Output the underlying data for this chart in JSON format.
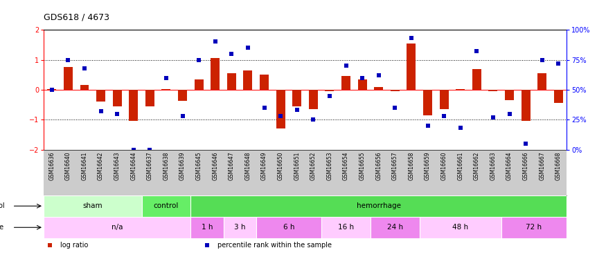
{
  "title": "GDS618 / 4673",
  "samples": [
    "GSM16636",
    "GSM16640",
    "GSM16641",
    "GSM16642",
    "GSM16643",
    "GSM16644",
    "GSM16637",
    "GSM16638",
    "GSM16639",
    "GSM16645",
    "GSM16646",
    "GSM16647",
    "GSM16648",
    "GSM16649",
    "GSM16650",
    "GSM16651",
    "GSM16652",
    "GSM16653",
    "GSM16654",
    "GSM16655",
    "GSM16656",
    "GSM16657",
    "GSM16658",
    "GSM16659",
    "GSM16660",
    "GSM16661",
    "GSM16662",
    "GSM16663",
    "GSM16664",
    "GSM16666",
    "GSM16667",
    "GSM16668"
  ],
  "log_ratio": [
    0.02,
    0.75,
    0.15,
    -0.4,
    -0.55,
    -1.05,
    -0.55,
    0.02,
    -0.38,
    0.35,
    1.05,
    0.55,
    0.65,
    0.5,
    -1.3,
    -0.55,
    -0.65,
    -0.05,
    0.45,
    0.35,
    0.08,
    -0.05,
    1.55,
    -0.85,
    -0.65,
    0.02,
    0.7,
    -0.05,
    -0.35,
    -1.05,
    0.55,
    -0.45
  ],
  "percentile": [
    50,
    75,
    68,
    32,
    30,
    0,
    0,
    60,
    28,
    75,
    90,
    80,
    85,
    35,
    28,
    33,
    25,
    45,
    70,
    60,
    62,
    35,
    93,
    20,
    28,
    18,
    82,
    27,
    30,
    5,
    75,
    72
  ],
  "protocol_groups": [
    {
      "label": "sham",
      "start": 0,
      "end": 5,
      "color": "#ccffcc"
    },
    {
      "label": "control",
      "start": 6,
      "end": 8,
      "color": "#66ee66"
    },
    {
      "label": "hemorrhage",
      "start": 9,
      "end": 31,
      "color": "#55dd55"
    }
  ],
  "time_groups": [
    {
      "label": "n/a",
      "start": 0,
      "end": 8,
      "color": "#ffccff"
    },
    {
      "label": "1 h",
      "start": 9,
      "end": 10,
      "color": "#ee88ee"
    },
    {
      "label": "3 h",
      "start": 11,
      "end": 12,
      "color": "#ffccff"
    },
    {
      "label": "6 h",
      "start": 13,
      "end": 16,
      "color": "#ee88ee"
    },
    {
      "label": "16 h",
      "start": 17,
      "end": 19,
      "color": "#ffccff"
    },
    {
      "label": "24 h",
      "start": 20,
      "end": 22,
      "color": "#ee88ee"
    },
    {
      "label": "48 h",
      "start": 23,
      "end": 27,
      "color": "#ffccff"
    },
    {
      "label": "72 h",
      "start": 28,
      "end": 31,
      "color": "#ee88ee"
    }
  ],
  "bar_color": "#cc2200",
  "dot_color": "#0000bb",
  "ylim": [
    -2,
    2
  ],
  "y2lim": [
    0,
    100
  ],
  "yticks_left": [
    -2,
    -1,
    0,
    1,
    2
  ],
  "yticks_right": [
    0,
    25,
    50,
    75,
    100
  ],
  "ytick_right_labels": [
    "0%",
    "25%",
    "50%",
    "75%",
    "100%"
  ],
  "dotted_hlines": [
    -1.0,
    1.0
  ],
  "solid_hline": 0.0,
  "xlabel_bg": "#cccccc",
  "legend_items": [
    {
      "label": "log ratio",
      "color": "#cc2200"
    },
    {
      "label": "percentile rank within the sample",
      "color": "#0000bb"
    }
  ]
}
